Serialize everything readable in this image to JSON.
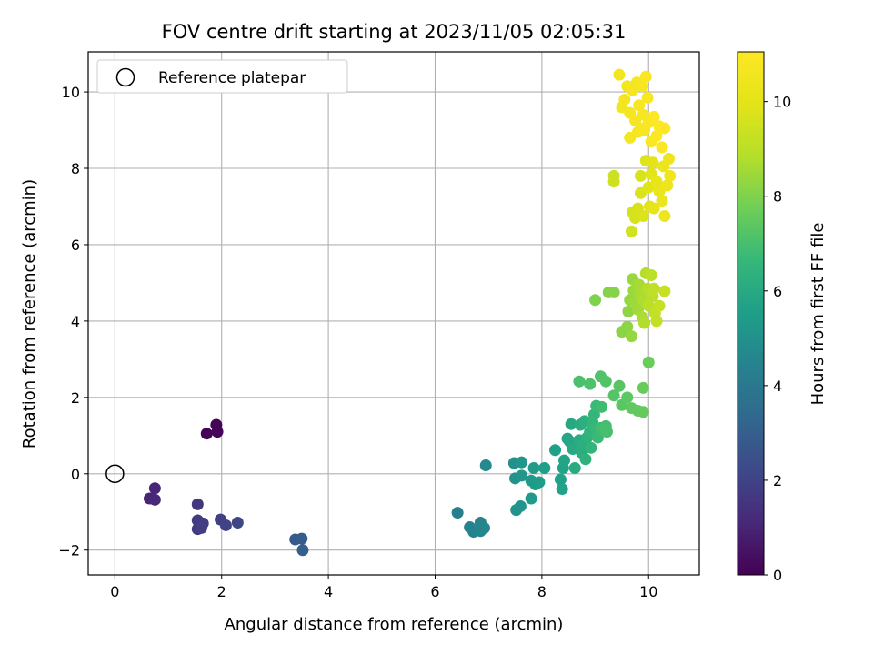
{
  "chart_data": {
    "type": "scatter",
    "title": "FOV centre drift starting at 2023/11/05 02:05:31",
    "xlabel": "Angular distance from reference (arcmin)",
    "ylabel": "Rotation from reference (arcmin)",
    "xlim": [
      -0.5,
      10.95
    ],
    "ylim": [
      -2.65,
      11.05
    ],
    "xticks": [
      "0",
      "2",
      "4",
      "6",
      "8",
      "10"
    ],
    "yticks": [
      "−2",
      "0",
      "2",
      "4",
      "6",
      "8",
      "10"
    ],
    "grid": true,
    "legend": {
      "placement": "upper-left",
      "entries": [
        "Reference platepar"
      ]
    },
    "reference_point": {
      "x": 0,
      "y": 0
    },
    "colorbar": {
      "label": "Hours from first FF file",
      "range": [
        0,
        11.05
      ],
      "ticks": [
        "0",
        "2",
        "4",
        "6",
        "8",
        "10"
      ],
      "colormap": "viridis"
    },
    "points": [
      [
        1.72,
        1.05,
        0.05
      ],
      [
        1.9,
        1.28,
        0.1
      ],
      [
        1.92,
        1.1,
        0.15
      ],
      [
        0.65,
        -0.65,
        1.0
      ],
      [
        0.75,
        -0.38,
        1.05
      ],
      [
        0.75,
        -0.68,
        1.1
      ],
      [
        1.55,
        -0.8,
        1.6
      ],
      [
        1.55,
        -1.22,
        1.7
      ],
      [
        1.55,
        -1.45,
        1.75
      ],
      [
        1.65,
        -1.3,
        1.8
      ],
      [
        1.62,
        -1.42,
        1.85
      ],
      [
        1.98,
        -1.2,
        1.9
      ],
      [
        2.08,
        -1.35,
        2.0
      ],
      [
        2.3,
        -1.28,
        2.1
      ],
      [
        3.38,
        -1.72,
        2.8
      ],
      [
        3.5,
        -1.7,
        2.9
      ],
      [
        3.52,
        -2.0,
        3.0
      ],
      [
        6.42,
        -1.02,
        4.3
      ],
      [
        6.65,
        -1.4,
        4.4
      ],
      [
        6.72,
        -1.52,
        4.45
      ],
      [
        6.85,
        -1.28,
        4.5
      ],
      [
        6.85,
        -1.5,
        4.55
      ],
      [
        6.92,
        -1.42,
        4.6
      ],
      [
        6.95,
        0.22,
        4.7
      ],
      [
        7.48,
        0.28,
        5.0
      ],
      [
        7.5,
        -0.12,
        5.05
      ],
      [
        7.52,
        -0.95,
        5.1
      ],
      [
        7.6,
        -0.85,
        5.15
      ],
      [
        7.62,
        0.3,
        5.2
      ],
      [
        7.62,
        -0.05,
        5.25
      ],
      [
        7.8,
        -0.18,
        5.3
      ],
      [
        7.8,
        -0.65,
        5.35
      ],
      [
        7.85,
        0.15,
        5.4
      ],
      [
        7.88,
        -0.28,
        5.45
      ],
      [
        7.95,
        -0.22,
        5.5
      ],
      [
        8.05,
        0.15,
        5.55
      ],
      [
        8.25,
        0.62,
        5.6
      ],
      [
        8.35,
        -0.15,
        5.65
      ],
      [
        8.38,
        -0.4,
        5.7
      ],
      [
        8.4,
        0.15,
        5.75
      ],
      [
        8.42,
        0.35,
        5.8
      ],
      [
        8.48,
        0.92,
        5.85
      ],
      [
        8.52,
        0.85,
        5.9
      ],
      [
        8.55,
        1.3,
        5.95
      ],
      [
        8.58,
        0.65,
        6.0
      ],
      [
        8.62,
        0.15,
        6.05
      ],
      [
        8.7,
        0.88,
        6.1
      ],
      [
        8.72,
        1.28,
        6.15
      ],
      [
        8.75,
        0.55,
        6.2
      ],
      [
        8.78,
        0.75,
        6.25
      ],
      [
        8.8,
        1.38,
        6.3
      ],
      [
        8.82,
        0.38,
        6.35
      ],
      [
        8.85,
        0.95,
        6.4
      ],
      [
        8.9,
        1.1,
        6.45
      ],
      [
        8.92,
        0.68,
        6.5
      ],
      [
        8.95,
        1.35,
        6.55
      ],
      [
        8.98,
        1.55,
        6.6
      ],
      [
        9.0,
        1.2,
        6.65
      ],
      [
        9.02,
        1.78,
        6.7
      ],
      [
        9.05,
        0.95,
        6.75
      ],
      [
        9.1,
        1.2,
        6.8
      ],
      [
        9.12,
        1.75,
        6.85
      ],
      [
        9.15,
        1.15,
        6.9
      ],
      [
        9.2,
        1.25,
        6.95
      ],
      [
        9.22,
        1.1,
        7.0
      ],
      [
        8.7,
        2.42,
        7.05
      ],
      [
        8.9,
        2.35,
        7.1
      ],
      [
        9.1,
        2.55,
        7.15
      ],
      [
        9.2,
        2.42,
        7.2
      ],
      [
        9.35,
        2.05,
        7.25
      ],
      [
        9.45,
        2.3,
        7.3
      ],
      [
        9.5,
        1.8,
        7.35
      ],
      [
        9.6,
        2.0,
        7.4
      ],
      [
        9.68,
        1.72,
        7.45
      ],
      [
        9.8,
        1.65,
        7.5
      ],
      [
        9.9,
        1.62,
        7.55
      ],
      [
        9.9,
        2.25,
        7.6
      ],
      [
        10.0,
        2.92,
        7.65
      ],
      [
        9.0,
        4.55,
        8.0
      ],
      [
        9.25,
        4.75,
        8.05
      ],
      [
        9.35,
        4.75,
        8.1
      ],
      [
        9.5,
        3.72,
        8.15
      ],
      [
        9.6,
        3.85,
        8.2
      ],
      [
        9.62,
        4.25,
        8.25
      ],
      [
        9.65,
        4.55,
        8.3
      ],
      [
        9.68,
        3.6,
        8.35
      ],
      [
        9.7,
        5.1,
        8.4
      ],
      [
        9.72,
        4.8,
        8.45
      ],
      [
        9.75,
        4.5,
        8.5
      ],
      [
        9.8,
        4.3,
        8.55
      ],
      [
        9.82,
        4.95,
        8.6
      ],
      [
        9.85,
        4.7,
        8.65
      ],
      [
        9.88,
        4.1,
        8.7
      ],
      [
        9.9,
        4.55,
        8.75
      ],
      [
        9.92,
        3.95,
        8.8
      ],
      [
        9.95,
        5.25,
        8.85
      ],
      [
        9.98,
        4.85,
        8.9
      ],
      [
        10.0,
        4.4,
        8.95
      ],
      [
        10.05,
        5.2,
        9.0
      ],
      [
        10.08,
        4.65,
        9.05
      ],
      [
        10.1,
        4.85,
        9.1
      ],
      [
        10.12,
        4.2,
        9.15
      ],
      [
        10.15,
        4.0,
        9.2
      ],
      [
        10.2,
        4.4,
        9.25
      ],
      [
        10.3,
        4.78,
        9.3
      ],
      [
        9.35,
        7.8,
        9.4
      ],
      [
        9.35,
        7.65,
        9.45
      ],
      [
        9.68,
        6.35,
        9.5
      ],
      [
        9.7,
        6.85,
        9.55
      ],
      [
        9.75,
        6.7,
        9.6
      ],
      [
        9.8,
        6.95,
        9.65
      ],
      [
        9.85,
        7.8,
        9.7
      ],
      [
        9.85,
        7.35,
        9.75
      ],
      [
        9.9,
        6.75,
        9.8
      ],
      [
        9.95,
        8.2,
        9.85
      ],
      [
        10.0,
        7.5,
        9.9
      ],
      [
        10.02,
        7.0,
        9.95
      ],
      [
        10.05,
        7.85,
        10.0
      ],
      [
        10.08,
        8.15,
        10.05
      ],
      [
        10.1,
        6.95,
        10.1
      ],
      [
        10.15,
        7.65,
        10.15
      ],
      [
        10.2,
        7.4,
        10.2
      ],
      [
        10.25,
        7.15,
        10.25
      ],
      [
        10.28,
        8.05,
        10.3
      ],
      [
        10.3,
        6.75,
        10.35
      ],
      [
        10.35,
        7.55,
        10.4
      ],
      [
        10.38,
        8.25,
        10.45
      ],
      [
        10.4,
        7.8,
        10.5
      ],
      [
        9.45,
        10.45,
        10.55
      ],
      [
        9.5,
        9.6,
        10.6
      ],
      [
        9.55,
        9.8,
        10.62
      ],
      [
        9.6,
        10.15,
        10.64
      ],
      [
        9.65,
        9.45,
        10.66
      ],
      [
        9.65,
        8.8,
        10.68
      ],
      [
        9.7,
        10.05,
        10.7
      ],
      [
        9.75,
        9.25,
        10.72
      ],
      [
        9.78,
        10.25,
        10.74
      ],
      [
        9.8,
        8.95,
        10.76
      ],
      [
        9.82,
        9.65,
        10.78
      ],
      [
        9.85,
        9.05,
        10.8
      ],
      [
        9.88,
        10.15,
        10.82
      ],
      [
        9.9,
        9.4,
        10.84
      ],
      [
        9.92,
        9.0,
        10.86
      ],
      [
        9.95,
        10.4,
        10.88
      ],
      [
        9.98,
        9.85,
        10.9
      ],
      [
        10.0,
        9.2,
        10.92
      ],
      [
        10.05,
        8.7,
        10.94
      ],
      [
        10.1,
        9.35,
        10.96
      ],
      [
        10.15,
        8.85,
        10.98
      ],
      [
        10.2,
        9.1,
        11.0
      ],
      [
        10.25,
        8.55,
        11.02
      ],
      [
        10.3,
        9.05,
        11.04
      ]
    ]
  }
}
